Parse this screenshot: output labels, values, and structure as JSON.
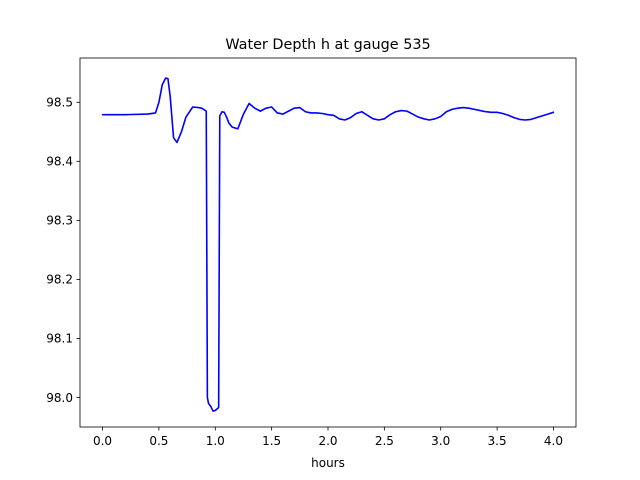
{
  "chart_data": {
    "type": "line",
    "title": "Water Depth h at gauge 535",
    "xlabel": "hours",
    "ylabel": "",
    "xlim": [
      -0.2,
      4.2
    ],
    "ylim": [
      97.95,
      98.575
    ],
    "xticks": [
      0.0,
      0.5,
      1.0,
      1.5,
      2.0,
      2.5,
      3.0,
      3.5,
      4.0
    ],
    "xtick_labels": [
      "0.0",
      "0.5",
      "1.0",
      "1.5",
      "2.0",
      "2.5",
      "3.0",
      "3.5",
      "4.0"
    ],
    "yticks": [
      98.0,
      98.1,
      98.2,
      98.3,
      98.4,
      98.5
    ],
    "ytick_labels": [
      "98.0",
      "98.1",
      "98.2",
      "98.3",
      "98.4",
      "98.5"
    ],
    "grid": false,
    "legend": "none",
    "series": [
      {
        "color": "#0000ff",
        "x": [
          0.0,
          0.2,
          0.4,
          0.47,
          0.5,
          0.53,
          0.56,
          0.58,
          0.6,
          0.63,
          0.66,
          0.7,
          0.74,
          0.8,
          0.85,
          0.88,
          0.92,
          0.93,
          0.94,
          0.96,
          0.98,
          1.0,
          1.03,
          1.04,
          1.06,
          1.08,
          1.1,
          1.12,
          1.15,
          1.2,
          1.25,
          1.3,
          1.35,
          1.4,
          1.45,
          1.5,
          1.55,
          1.6,
          1.65,
          1.7,
          1.75,
          1.8,
          1.85,
          1.9,
          1.95,
          2.0,
          2.05,
          2.1,
          2.15,
          2.2,
          2.25,
          2.3,
          2.35,
          2.4,
          2.45,
          2.5,
          2.55,
          2.6,
          2.65,
          2.7,
          2.75,
          2.8,
          2.85,
          2.9,
          2.95,
          3.0,
          3.05,
          3.1,
          3.15,
          3.2,
          3.25,
          3.3,
          3.35,
          3.4,
          3.45,
          3.5,
          3.55,
          3.6,
          3.65,
          3.7,
          3.75,
          3.8,
          3.85,
          3.9,
          3.95,
          4.0
        ],
        "y": [
          98.479,
          98.479,
          98.48,
          98.482,
          98.5,
          98.53,
          98.541,
          98.54,
          98.51,
          98.44,
          98.432,
          98.45,
          98.475,
          98.492,
          98.491,
          98.49,
          98.485,
          98.0,
          97.99,
          97.985,
          97.977,
          97.978,
          97.983,
          98.477,
          98.484,
          98.483,
          98.475,
          98.465,
          98.458,
          98.455,
          98.48,
          98.498,
          98.49,
          98.485,
          98.49,
          98.492,
          98.482,
          98.48,
          98.485,
          98.49,
          98.491,
          98.484,
          98.482,
          98.482,
          98.481,
          98.479,
          98.478,
          98.472,
          98.47,
          98.474,
          98.481,
          98.484,
          98.478,
          98.472,
          98.47,
          98.472,
          98.479,
          98.484,
          98.486,
          98.485,
          98.48,
          98.475,
          98.472,
          98.47,
          98.472,
          98.476,
          98.484,
          98.488,
          98.49,
          98.491,
          98.49,
          98.488,
          98.486,
          98.484,
          98.483,
          98.483,
          98.481,
          98.478,
          98.474,
          98.471,
          98.47,
          98.471,
          98.474,
          98.477,
          98.48,
          98.483
        ]
      }
    ]
  }
}
